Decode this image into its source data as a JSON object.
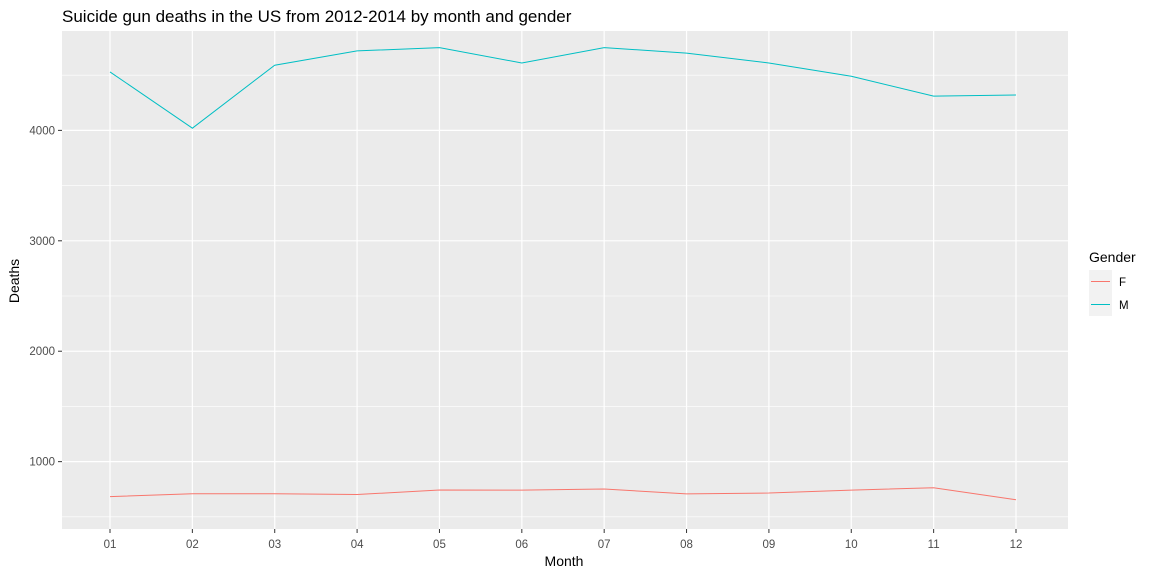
{
  "chart_data": {
    "type": "line",
    "title": "Suicide gun deaths in the US from 2012-2014 by month and gender",
    "xlabel": "Month",
    "ylabel": "Deaths",
    "categories": [
      "01",
      "02",
      "03",
      "04",
      "05",
      "06",
      "07",
      "08",
      "09",
      "10",
      "11",
      "12"
    ],
    "ylim": [
      390,
      4900
    ],
    "yticks": [
      1000,
      2000,
      3000,
      4000
    ],
    "grid": true,
    "legend": {
      "title": "Gender",
      "position": "right"
    },
    "series": [
      {
        "name": "F",
        "color": "#F8766D",
        "values": [
          683,
          709,
          709,
          702,
          743,
          742,
          752,
          708,
          716,
          742,
          764,
          655
        ]
      },
      {
        "name": "M",
        "color": "#00BFC4",
        "values": [
          4530,
          4020,
          4590,
          4720,
          4750,
          4610,
          4750,
          4700,
          4610,
          4490,
          4310,
          4320
        ]
      }
    ]
  }
}
